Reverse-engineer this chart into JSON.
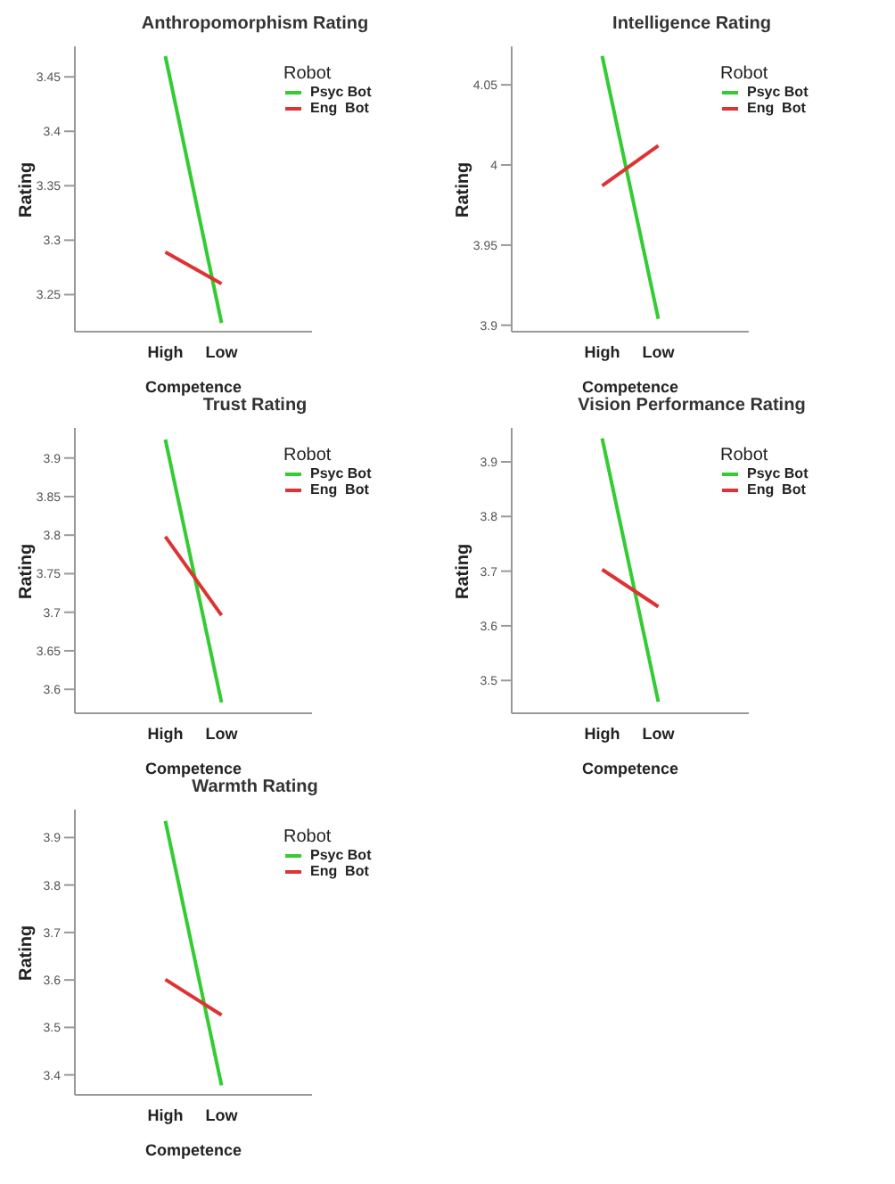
{
  "chart_data": [
    {
      "type": "line",
      "title": "Anthropomorphism Rating",
      "xlabel": "Competence",
      "ylabel": "Rating",
      "categories": [
        "High",
        "Low"
      ],
      "series": [
        {
          "name": "Psyc Bot",
          "color": "#33cc33",
          "values": [
            3.469,
            3.224
          ]
        },
        {
          "name": "Eng  Bot",
          "color": "#dd3333",
          "values": [
            3.289,
            3.26
          ]
        }
      ],
      "ylim": [
        3.216,
        3.478
      ],
      "yticks": [
        3.25,
        3.3,
        3.35,
        3.4,
        3.45
      ],
      "legend": "top right",
      "legend_title": "Robot",
      "grid": false
    },
    {
      "type": "line",
      "title": "Intelligence Rating",
      "xlabel": "Competence",
      "ylabel": "Rating",
      "categories": [
        "High",
        "Low"
      ],
      "series": [
        {
          "name": "Psyc Bot",
          "color": "#33cc33",
          "values": [
            4.068,
            3.904
          ]
        },
        {
          "name": "Eng  Bot",
          "color": "#dd3333",
          "values": [
            3.987,
            4.012
          ]
        }
      ],
      "ylim": [
        3.896,
        4.074
      ],
      "yticks": [
        3.9,
        3.95,
        4,
        4.05
      ],
      "legend": "top right",
      "legend_title": "Robot",
      "grid": false
    },
    {
      "type": "line",
      "title": "Trust Rating",
      "xlabel": "Competence",
      "ylabel": "Rating",
      "categories": [
        "High",
        "Low"
      ],
      "series": [
        {
          "name": "Psyc Bot",
          "color": "#33cc33",
          "values": [
            3.924,
            3.583
          ]
        },
        {
          "name": "Eng  Bot",
          "color": "#dd3333",
          "values": [
            3.798,
            3.696
          ]
        }
      ],
      "ylim": [
        3.569,
        3.939
      ],
      "yticks": [
        3.6,
        3.65,
        3.7,
        3.75,
        3.8,
        3.85,
        3.9
      ],
      "legend": "top right",
      "legend_title": "Robot",
      "grid": false
    },
    {
      "type": "line",
      "title": "Vision Performance Rating",
      "xlabel": "Competence",
      "ylabel": "Rating",
      "categories": [
        "High",
        "Low"
      ],
      "series": [
        {
          "name": "Psyc Bot",
          "color": "#33cc33",
          "values": [
            3.943,
            3.461
          ]
        },
        {
          "name": "Eng  Bot",
          "color": "#dd3333",
          "values": [
            3.703,
            3.635
          ]
        }
      ],
      "ylim": [
        3.44,
        3.962
      ],
      "yticks": [
        3.5,
        3.6,
        3.7,
        3.8,
        3.9
      ],
      "legend": "top right",
      "legend_title": "Robot",
      "grid": false
    },
    {
      "type": "line",
      "title": "Warmth Rating",
      "xlabel": "Competence",
      "ylabel": "Rating",
      "categories": [
        "High",
        "Low"
      ],
      "series": [
        {
          "name": "Psyc Bot",
          "color": "#33cc33",
          "values": [
            3.935,
            3.378
          ]
        },
        {
          "name": "Eng  Bot",
          "color": "#dd3333",
          "values": [
            3.601,
            3.526
          ]
        }
      ],
      "ylim": [
        3.358,
        3.959
      ],
      "yticks": [
        3.4,
        3.5,
        3.6,
        3.7,
        3.8,
        3.9
      ],
      "legend": "top right",
      "legend_title": "Robot",
      "grid": false
    }
  ]
}
